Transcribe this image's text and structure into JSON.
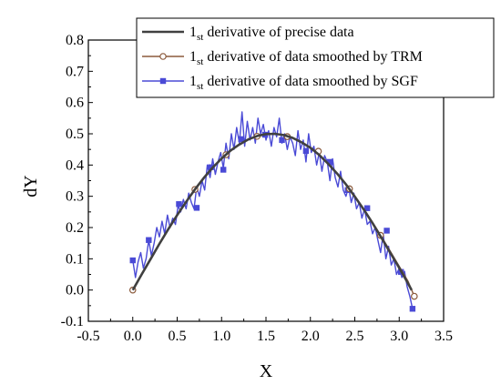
{
  "chart_data": {
    "type": "line",
    "xlabel": "X",
    "ylabel": "dY",
    "xlim": [
      -0.5,
      3.5
    ],
    "ylim": [
      -0.1,
      0.8
    ],
    "xticks": [
      -0.5,
      0.0,
      0.5,
      1.0,
      1.5,
      2.0,
      2.5,
      3.0,
      3.5
    ],
    "yticks": [
      -0.1,
      0.0,
      0.1,
      0.2,
      0.3,
      0.4,
      0.5,
      0.6,
      0.7,
      0.8
    ],
    "xtick_labels": [
      "-0.5",
      "0.0",
      "0.5",
      "1.0",
      "1.5",
      "2.0",
      "2.5",
      "3.0",
      "3.5"
    ],
    "ytick_labels": [
      "-0.1",
      "0.0",
      "0.1",
      "0.2",
      "0.3",
      "0.4",
      "0.5",
      "0.6",
      "0.7",
      "0.8"
    ],
    "grid": false,
    "legend_position": "top-right",
    "series": [
      {
        "name_main": "1",
        "name_sub": "st",
        "name_rest": " derivative of precise data",
        "color": "#404040",
        "marker": "none",
        "x": [
          0.0,
          0.1,
          0.2,
          0.3,
          0.4,
          0.5,
          0.6,
          0.7,
          0.8,
          0.9,
          1.0,
          1.1,
          1.2,
          1.3,
          1.4,
          1.5,
          1.6,
          1.7,
          1.8,
          1.9,
          2.0,
          2.1,
          2.2,
          2.3,
          2.4,
          2.5,
          2.6,
          2.7,
          2.8,
          2.9,
          3.0,
          3.1,
          3.14
        ],
        "y": [
          0.0,
          0.05,
          0.099,
          0.148,
          0.195,
          0.24,
          0.282,
          0.322,
          0.359,
          0.392,
          0.421,
          0.446,
          0.466,
          0.482,
          0.493,
          0.499,
          0.5,
          0.496,
          0.487,
          0.473,
          0.455,
          0.432,
          0.404,
          0.373,
          0.338,
          0.299,
          0.258,
          0.214,
          0.167,
          0.119,
          0.071,
          0.021,
          0.0
        ]
      },
      {
        "name_main": "1",
        "name_sub": "st",
        "name_rest": " derivative of data smoothed by TRM",
        "color": "#8B5A3C",
        "marker": "circle",
        "x": [
          0.0,
          0.1,
          0.2,
          0.3,
          0.4,
          0.5,
          0.6,
          0.7,
          0.8,
          0.9,
          1.0,
          1.1,
          1.2,
          1.3,
          1.4,
          1.5,
          1.6,
          1.7,
          1.8,
          1.9,
          2.0,
          2.1,
          2.2,
          2.3,
          2.4,
          2.5,
          2.6,
          2.7,
          2.8,
          2.9,
          3.0,
          3.1,
          3.17
        ],
        "y": [
          0.0,
          0.048,
          0.097,
          0.146,
          0.193,
          0.238,
          0.28,
          0.322,
          0.357,
          0.39,
          0.42,
          0.445,
          0.465,
          0.481,
          0.492,
          0.498,
          0.499,
          0.495,
          0.486,
          0.472,
          0.454,
          0.431,
          0.403,
          0.372,
          0.337,
          0.3,
          0.26,
          0.217,
          0.171,
          0.124,
          0.076,
          0.028,
          -0.02
        ],
        "marker_x": [
          0.0,
          0.7,
          1.05,
          1.4,
          1.74,
          2.09,
          2.44,
          2.79,
          3.17
        ],
        "marker_y": [
          0.0,
          0.322,
          0.433,
          0.492,
          0.491,
          0.444,
          0.324,
          0.175,
          -0.02
        ]
      },
      {
        "name_main": "1",
        "name_sub": "st",
        "name_rest": " derivative of data smoothed by SGF",
        "color": "#4A4AD6",
        "marker": "square",
        "x": [
          0.0,
          0.03,
          0.06,
          0.09,
          0.12,
          0.15,
          0.18,
          0.21,
          0.24,
          0.27,
          0.3,
          0.33,
          0.36,
          0.39,
          0.42,
          0.45,
          0.48,
          0.51,
          0.54,
          0.57,
          0.6,
          0.63,
          0.66,
          0.69,
          0.72,
          0.75,
          0.78,
          0.81,
          0.84,
          0.87,
          0.9,
          0.93,
          0.96,
          0.99,
          1.02,
          1.05,
          1.08,
          1.11,
          1.14,
          1.17,
          1.2,
          1.23,
          1.26,
          1.29,
          1.32,
          1.35,
          1.38,
          1.41,
          1.44,
          1.47,
          1.5,
          1.53,
          1.56,
          1.59,
          1.62,
          1.65,
          1.68,
          1.71,
          1.74,
          1.77,
          1.8,
          1.83,
          1.86,
          1.89,
          1.92,
          1.95,
          1.98,
          2.01,
          2.04,
          2.07,
          2.1,
          2.13,
          2.16,
          2.19,
          2.22,
          2.25,
          2.28,
          2.31,
          2.34,
          2.37,
          2.4,
          2.43,
          2.46,
          2.49,
          2.52,
          2.55,
          2.58,
          2.61,
          2.64,
          2.67,
          2.7,
          2.73,
          2.76,
          2.79,
          2.82,
          2.85,
          2.88,
          2.91,
          2.94,
          2.97,
          3.0,
          3.03,
          3.06,
          3.09,
          3.12,
          3.15
        ],
        "y": [
          0.095,
          0.04,
          0.09,
          0.12,
          0.07,
          0.1,
          0.16,
          0.11,
          0.15,
          0.2,
          0.17,
          0.22,
          0.18,
          0.24,
          0.2,
          0.23,
          0.21,
          0.27,
          0.25,
          0.29,
          0.26,
          0.31,
          0.28,
          0.26,
          0.33,
          0.3,
          0.35,
          0.32,
          0.4,
          0.36,
          0.42,
          0.37,
          0.41,
          0.44,
          0.39,
          0.47,
          0.42,
          0.5,
          0.45,
          0.52,
          0.47,
          0.57,
          0.46,
          0.54,
          0.48,
          0.52,
          0.47,
          0.55,
          0.5,
          0.53,
          0.48,
          0.51,
          0.46,
          0.52,
          0.49,
          0.55,
          0.47,
          0.5,
          0.45,
          0.49,
          0.47,
          0.43,
          0.51,
          0.45,
          0.48,
          0.41,
          0.5,
          0.44,
          0.46,
          0.4,
          0.44,
          0.38,
          0.43,
          0.41,
          0.35,
          0.42,
          0.36,
          0.33,
          0.38,
          0.32,
          0.3,
          0.33,
          0.28,
          0.31,
          0.26,
          0.28,
          0.23,
          0.26,
          0.21,
          0.22,
          0.18,
          0.2,
          0.16,
          0.12,
          0.18,
          0.1,
          0.14,
          0.08,
          0.1,
          0.05,
          0.07,
          0.04,
          0.06,
          0.01,
          -0.02,
          -0.06
        ],
        "marker_x": [
          0.0,
          0.18,
          0.52,
          0.72,
          0.88,
          1.02,
          1.22,
          1.49,
          1.68,
          1.95,
          2.22,
          2.42,
          2.64,
          2.86,
          3.02,
          3.15
        ],
        "marker_y": [
          0.095,
          0.16,
          0.275,
          0.263,
          0.393,
          0.385,
          0.483,
          0.497,
          0.48,
          0.445,
          0.41,
          0.32,
          0.262,
          0.19,
          0.058,
          -0.06
        ]
      }
    ]
  }
}
